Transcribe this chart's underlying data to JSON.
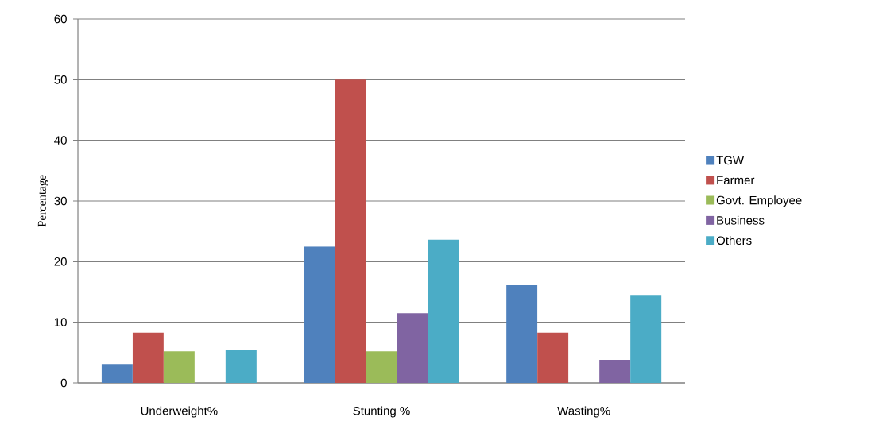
{
  "chart_data": {
    "type": "bar",
    "ylabel": "Percentage",
    "categories": [
      "Underweight%",
      "Stunting %",
      "Wasting%"
    ],
    "series": [
      {
        "name": "TGW",
        "color": "#4f81bd",
        "values": [
          3.1,
          22.5,
          16.1
        ]
      },
      {
        "name": "Farmer",
        "color": "#c0504d",
        "values": [
          8.3,
          50,
          8.3
        ]
      },
      {
        "name": "Govt. Employee",
        "color": "#9bbb59",
        "values": [
          5.2,
          5.2,
          null
        ]
      },
      {
        "name": "Business",
        "color": "#8064a2",
        "values": [
          null,
          11.5,
          3.8
        ]
      },
      {
        "name": "Others",
        "color": "#4bacc6",
        "values": [
          5.4,
          23.6,
          14.5
        ]
      }
    ],
    "ylim": [
      0,
      60
    ],
    "yticks": [
      0,
      10,
      20,
      30,
      40,
      50,
      60
    ],
    "grid": "y",
    "legend": "right"
  }
}
